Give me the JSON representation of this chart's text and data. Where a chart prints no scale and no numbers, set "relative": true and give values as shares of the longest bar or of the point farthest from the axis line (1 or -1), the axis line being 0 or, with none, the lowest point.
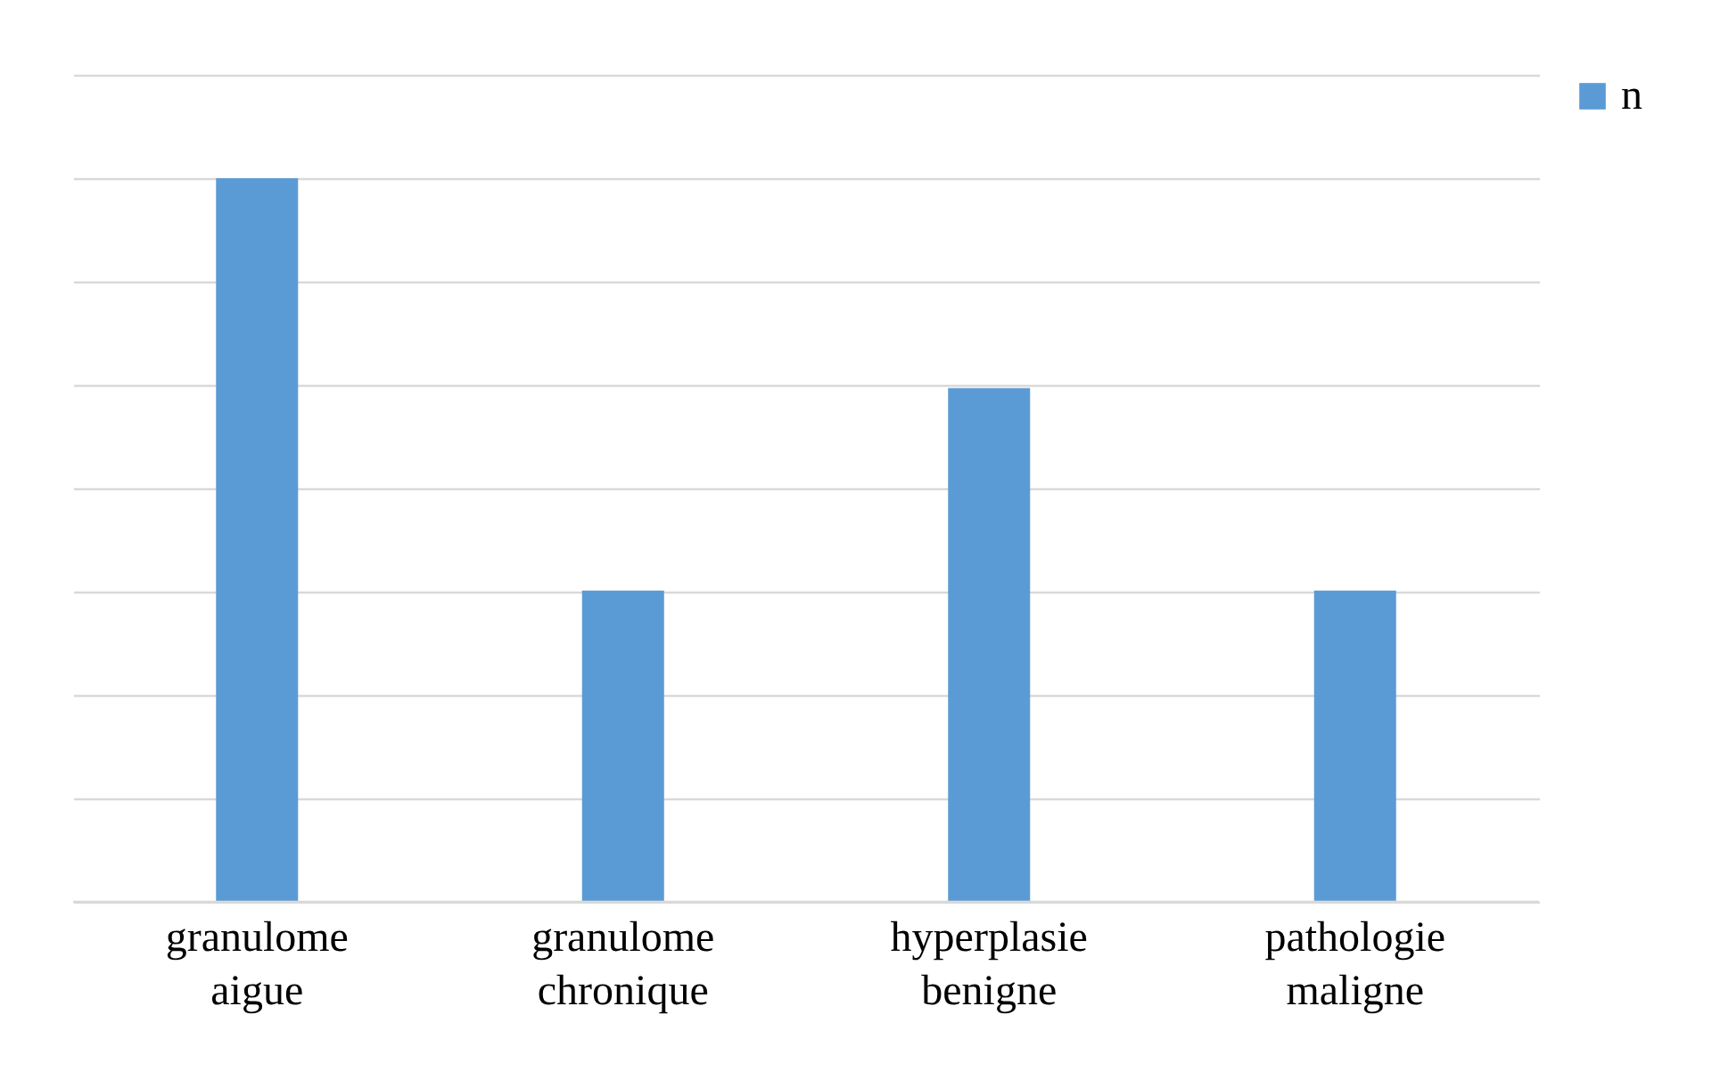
{
  "chart_data": {
    "type": "bar",
    "relative": true,
    "categories": [
      "granulome aigue",
      "granulome chronique",
      "hyperplasie benigne",
      "pathologie maligne"
    ],
    "series": [
      {
        "name": "n",
        "color": "#5b9bd5",
        "values": [
          1,
          0.43,
          0.71,
          0.43
        ]
      }
    ],
    "grid": "y",
    "legend": "right"
  }
}
